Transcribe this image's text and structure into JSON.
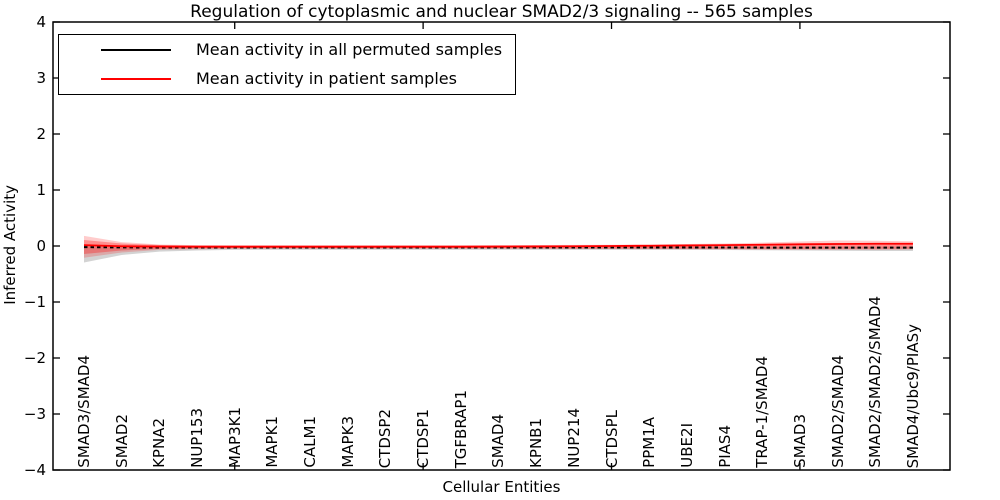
{
  "chart_data": {
    "type": "line",
    "title": "Regulation of cytoplasmic and nuclear SMAD2/3 signaling -- 565 samples",
    "xlabel": "Cellular Entities",
    "ylabel": "Inferred Activity",
    "ylim": [
      -4,
      4
    ],
    "ytick_values": [
      4,
      3,
      2,
      1,
      0,
      -1,
      -2,
      -3,
      -4
    ],
    "ytick_labels": [
      "4",
      "3",
      "2",
      "1",
      "0",
      "−1",
      "−2",
      "−3",
      "−4"
    ],
    "xtick_category_indices": [
      4,
      9,
      14,
      19
    ],
    "grid": false,
    "legend_position": "upper left",
    "categories": [
      "SMAD3/SMAD4",
      "SMAD2",
      "KPNA2",
      "NUP153",
      "MAP3K1",
      "MAPK1",
      "CALM1",
      "MAPK3",
      "CTDSP2",
      "CTDSP1",
      "TGFBRAP1",
      "SMAD4",
      "KPNB1",
      "NUP214",
      "CTDSPL",
      "PPM1A",
      "UBE2I",
      "PIAS4",
      "TRAP-1/SMAD4",
      "SMAD3",
      "SMAD2/SMAD4",
      "SMAD2/SMAD2/SMAD4",
      "SMAD4/Ubc9/PIASy"
    ],
    "series": [
      {
        "name": "Mean activity in all permuted samples",
        "color": "#000000",
        "linestyle": "dashed",
        "values": [
          -0.02,
          -0.025,
          -0.027,
          -0.027,
          -0.027,
          -0.027,
          -0.027,
          -0.027,
          -0.027,
          -0.027,
          -0.027,
          -0.027,
          -0.027,
          -0.027,
          -0.027,
          -0.027,
          -0.027,
          -0.027,
          -0.028,
          -0.028,
          -0.028,
          -0.028,
          -0.028
        ]
      },
      {
        "name": "Mean activity in patient samples",
        "color": "#ff0000",
        "linestyle": "solid",
        "values": [
          0.015,
          -0.005,
          -0.01,
          -0.012,
          -0.012,
          -0.012,
          -0.012,
          -0.012,
          -0.012,
          -0.012,
          -0.012,
          -0.01,
          -0.008,
          -0.005,
          0.0,
          0.005,
          0.01,
          0.015,
          0.022,
          0.03,
          0.036,
          0.04,
          0.04
        ]
      }
    ],
    "bands": [
      {
        "name": "permuted-samples-spread",
        "color": "#8c8c8c",
        "alpha": 0.38,
        "upper": [
          0.0,
          -0.01,
          -0.012,
          -0.012,
          -0.012,
          -0.012,
          -0.012,
          -0.012,
          -0.012,
          -0.012,
          -0.012,
          -0.012,
          -0.012,
          -0.012,
          -0.012,
          -0.012,
          -0.012,
          -0.012,
          -0.012,
          -0.012,
          -0.012,
          -0.012,
          -0.012
        ],
        "lower": [
          -0.295,
          -0.16,
          -0.1,
          -0.08,
          -0.07,
          -0.07,
          -0.07,
          -0.07,
          -0.07,
          -0.07,
          -0.07,
          -0.07,
          -0.07,
          -0.07,
          -0.07,
          -0.07,
          -0.07,
          -0.072,
          -0.075,
          -0.08,
          -0.085,
          -0.09,
          -0.09
        ]
      },
      {
        "name": "patient-samples-spread-outer",
        "color": "#ff0000",
        "alpha": 0.2,
        "upper": [
          0.18,
          0.07,
          0.027,
          0.015,
          0.013,
          0.013,
          0.013,
          0.013,
          0.013,
          0.013,
          0.013,
          0.015,
          0.018,
          0.02,
          0.022,
          0.027,
          0.035,
          0.045,
          0.06,
          0.08,
          0.098,
          0.093,
          0.084
        ],
        "lower": [
          -0.21,
          -0.116,
          -0.07,
          -0.06,
          -0.05,
          -0.05,
          -0.05,
          -0.05,
          -0.05,
          -0.05,
          -0.05,
          -0.05,
          -0.052,
          -0.054,
          -0.054,
          -0.056,
          -0.058,
          -0.06,
          -0.065,
          -0.068,
          -0.07,
          -0.07,
          -0.063
        ]
      },
      {
        "name": "patient-samples-spread-inner",
        "color": "#ff0000",
        "alpha": 0.3,
        "upper": [
          0.107,
          0.045,
          0.018,
          0.006,
          0.004,
          0.004,
          0.004,
          0.004,
          0.004,
          0.004,
          0.004,
          0.005,
          0.007,
          0.009,
          0.012,
          0.016,
          0.02,
          0.028,
          0.038,
          0.045,
          0.054,
          0.054,
          0.054
        ],
        "lower": [
          -0.143,
          -0.08,
          -0.054,
          -0.042,
          -0.04,
          -0.04,
          -0.04,
          -0.04,
          -0.04,
          -0.04,
          -0.04,
          -0.04,
          -0.042,
          -0.044,
          -0.044,
          -0.046,
          -0.048,
          -0.05,
          -0.052,
          -0.054,
          -0.052,
          -0.05,
          -0.048
        ]
      }
    ]
  }
}
